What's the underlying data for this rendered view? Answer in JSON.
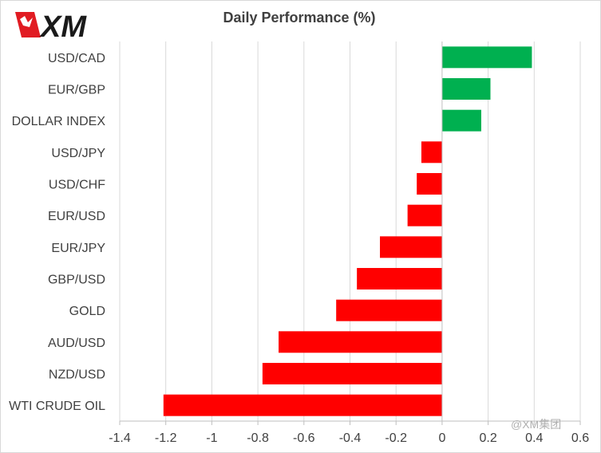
{
  "brand": {
    "name": "XM",
    "colors": {
      "red": "#e11b22",
      "black": "#1a1a1a"
    }
  },
  "watermark": "@XM集团",
  "chart_data": {
    "type": "bar",
    "orientation": "horizontal",
    "title": "Daily Performance  (%)",
    "xlabel": "",
    "ylabel": "",
    "categories": [
      "USD/CAD",
      "EUR/GBP",
      "DOLLAR INDEX",
      "USD/JPY",
      "USD/CHF",
      "EUR/USD",
      "EUR/JPY",
      "GBP/USD",
      "GOLD",
      "AUD/USD",
      "NZD/USD",
      "WTI CRUDE OIL"
    ],
    "values": [
      0.39,
      0.21,
      0.17,
      -0.09,
      -0.11,
      -0.15,
      -0.27,
      -0.37,
      -0.46,
      -0.71,
      -0.78,
      -1.21
    ],
    "xlim": [
      -1.4,
      0.6
    ],
    "xticks": [
      -1.4,
      -1.2,
      -1,
      -0.8,
      -0.6,
      -0.4,
      -0.2,
      0,
      0.2,
      0.4,
      0.6
    ],
    "xtick_labels": [
      "-1.4",
      "-1.2",
      "-1",
      "-0.8",
      "-0.6",
      "-0.4",
      "-0.2",
      "0",
      "0.2",
      "0.4",
      "0.6"
    ],
    "grid": true,
    "legend": false,
    "colors": {
      "positive": "#00b050",
      "negative": "#ff0000",
      "gridline": "#d9d9d9",
      "axis": "#bfbfbf"
    }
  }
}
